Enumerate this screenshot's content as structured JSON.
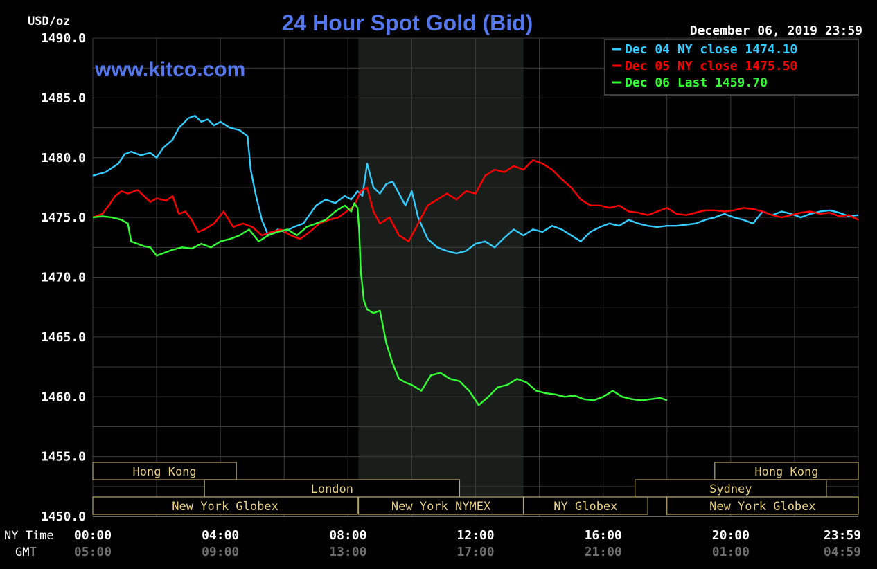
{
  "chart_data": {
    "type": "line",
    "title": "24 Hour Spot Gold (Bid)",
    "watermark": "www.kitco.com",
    "date_label": "December 06, 2019 23:59",
    "ylabel": "USD/oz",
    "ylim": [
      1450,
      1490
    ],
    "yticks": [
      {
        "value": 1450,
        "label": "1450.0"
      },
      {
        "value": 1455,
        "label": "1455.0"
      },
      {
        "value": 1460,
        "label": "1460.0"
      },
      {
        "value": 1465,
        "label": "1465.0"
      },
      {
        "value": 1470,
        "label": "1470.0"
      },
      {
        "value": 1475,
        "label": "1475.0"
      },
      {
        "value": 1480,
        "label": "1480.0"
      },
      {
        "value": 1485,
        "label": "1485.0"
      },
      {
        "value": 1490,
        "label": "1490.0"
      }
    ],
    "xlim": [
      0,
      24
    ],
    "x_row1_title": "NY Time",
    "x_row2_title": "GMT",
    "xticks": [
      {
        "hour": 0,
        "ny": "00:00",
        "gmt": "05:00"
      },
      {
        "hour": 4,
        "ny": "04:00",
        "gmt": "09:00"
      },
      {
        "hour": 8,
        "ny": "08:00",
        "gmt": "13:00"
      },
      {
        "hour": 12,
        "ny": "12:00",
        "gmt": "17:00"
      },
      {
        "hour": 16,
        "ny": "16:00",
        "gmt": "21:00"
      },
      {
        "hour": 20,
        "ny": "20:00",
        "gmt": "01:00"
      },
      {
        "hour": 23.98,
        "ny": "23:59",
        "gmt": "04:59"
      }
    ],
    "grid": true,
    "legend_position": "top-right",
    "shaded_range": [
      8.33,
      13.5
    ],
    "sessions": [
      {
        "label": "Hong Kong",
        "start": 0,
        "end": 4.5,
        "row": 0
      },
      {
        "label": "Hong Kong",
        "start": 19.5,
        "end": 24,
        "row": 0
      },
      {
        "label": "London",
        "start": 3.5,
        "end": 11.5,
        "row": 1
      },
      {
        "label": "Sydney",
        "start": 17,
        "end": 23,
        "row": 1
      },
      {
        "label": "New York Globex",
        "start": 0,
        "end": 8.3,
        "row": 2
      },
      {
        "label": "New York NYMEX",
        "start": 8.33,
        "end": 13.5,
        "row": 2
      },
      {
        "label": "NY Globex",
        "start": 13.5,
        "end": 17.4,
        "row": 2
      },
      {
        "label": "New York Globex",
        "start": 18,
        "end": 24,
        "row": 2
      }
    ],
    "series": [
      {
        "name": "Dec 04 NY close 1474.10",
        "color": "#33ccff",
        "x": [
          0,
          0.4,
          0.8,
          1.0,
          1.2,
          1.5,
          1.8,
          2.0,
          2.2,
          2.5,
          2.7,
          3.0,
          3.2,
          3.4,
          3.6,
          3.8,
          4.0,
          4.3,
          4.6,
          4.85,
          4.95,
          5.1,
          5.3,
          5.5,
          5.8,
          6.0,
          6.3,
          6.6,
          7.0,
          7.3,
          7.6,
          7.9,
          8.1,
          8.3,
          8.45,
          8.6,
          8.8,
          9.0,
          9.2,
          9.4,
          9.6,
          9.8,
          10.0,
          10.2,
          10.5,
          10.8,
          11.1,
          11.4,
          11.7,
          12.0,
          12.3,
          12.6,
          12.9,
          13.2,
          13.5,
          13.8,
          14.1,
          14.4,
          14.7,
          15.0,
          15.3,
          15.6,
          15.9,
          16.2,
          16.5,
          16.8,
          17.1,
          17.4,
          17.7,
          18.0,
          18.3,
          18.6,
          18.9,
          19.2,
          19.5,
          19.8,
          20.1,
          20.4,
          20.7,
          21.0,
          21.3,
          21.6,
          21.9,
          22.2,
          22.5,
          22.8,
          23.1,
          23.4,
          23.7,
          24.0
        ],
        "values": [
          1478.5,
          1478.8,
          1479.5,
          1480.3,
          1480.5,
          1480.2,
          1480.4,
          1480.0,
          1480.8,
          1481.5,
          1482.5,
          1483.3,
          1483.5,
          1483.0,
          1483.2,
          1482.7,
          1483.0,
          1482.5,
          1482.3,
          1481.8,
          1479.0,
          1477.0,
          1474.8,
          1473.5,
          1474.0,
          1473.8,
          1474.2,
          1474.5,
          1476.0,
          1476.5,
          1476.2,
          1476.8,
          1476.5,
          1477.2,
          1476.8,
          1479.5,
          1477.5,
          1477.0,
          1477.8,
          1478.0,
          1477.0,
          1476.0,
          1477.2,
          1475.0,
          1473.2,
          1472.5,
          1472.2,
          1472.0,
          1472.2,
          1472.8,
          1473.0,
          1472.5,
          1473.3,
          1474.0,
          1473.5,
          1474.0,
          1473.8,
          1474.3,
          1474.0,
          1473.5,
          1473.0,
          1473.8,
          1474.2,
          1474.5,
          1474.3,
          1474.8,
          1474.5,
          1474.3,
          1474.2,
          1474.3,
          1474.3,
          1474.4,
          1474.5,
          1474.8,
          1475.0,
          1475.3,
          1475.0,
          1474.8,
          1474.5,
          1475.5,
          1475.2,
          1475.5,
          1475.3,
          1475.0,
          1475.3,
          1475.5,
          1475.6,
          1475.4,
          1475.1,
          1475.2
        ]
      },
      {
        "name": "Dec 05 NY close 1475.50",
        "color": "#ff0000",
        "x": [
          0,
          0.3,
          0.5,
          0.7,
          0.9,
          1.1,
          1.4,
          1.6,
          1.8,
          2.0,
          2.3,
          2.5,
          2.7,
          2.9,
          3.1,
          3.3,
          3.5,
          3.8,
          4.1,
          4.4,
          4.7,
          5.0,
          5.3,
          5.6,
          5.9,
          6.2,
          6.5,
          6.8,
          7.1,
          7.4,
          7.7,
          8.0,
          8.2,
          8.4,
          8.6,
          8.8,
          9.0,
          9.3,
          9.6,
          9.9,
          10.2,
          10.5,
          10.8,
          11.1,
          11.4,
          11.7,
          12.0,
          12.3,
          12.6,
          12.9,
          13.2,
          13.5,
          13.8,
          14.1,
          14.4,
          14.7,
          15.0,
          15.3,
          15.6,
          15.9,
          16.2,
          16.5,
          16.8,
          17.1,
          17.4,
          17.7,
          18.0,
          18.3,
          18.6,
          18.9,
          19.2,
          19.5,
          19.8,
          20.1,
          20.4,
          20.7,
          21.0,
          21.3,
          21.6,
          21.9,
          22.2,
          22.5,
          22.8,
          23.1,
          23.4,
          23.7,
          24.0
        ],
        "values": [
          1475.0,
          1475.3,
          1476.0,
          1476.8,
          1477.2,
          1477.0,
          1477.3,
          1476.8,
          1476.3,
          1476.6,
          1476.4,
          1476.8,
          1475.3,
          1475.5,
          1474.8,
          1473.8,
          1474.0,
          1474.5,
          1475.5,
          1474.2,
          1474.5,
          1474.2,
          1473.5,
          1473.8,
          1474.0,
          1473.5,
          1473.2,
          1473.8,
          1474.5,
          1474.8,
          1475.0,
          1475.6,
          1476.0,
          1477.2,
          1477.5,
          1475.5,
          1474.5,
          1475.0,
          1473.5,
          1473.0,
          1474.5,
          1476.0,
          1476.5,
          1477.0,
          1476.5,
          1477.2,
          1477.0,
          1478.5,
          1479.0,
          1478.8,
          1479.3,
          1479.0,
          1479.8,
          1479.5,
          1479.0,
          1478.2,
          1477.5,
          1476.5,
          1476.0,
          1476.0,
          1475.8,
          1476.0,
          1475.5,
          1475.4,
          1475.2,
          1475.5,
          1475.8,
          1475.3,
          1475.2,
          1475.4,
          1475.6,
          1475.6,
          1475.5,
          1475.6,
          1475.8,
          1475.7,
          1475.5,
          1475.2,
          1475.0,
          1475.2,
          1475.4,
          1475.5,
          1475.3,
          1475.4,
          1475.1,
          1475.2,
          1474.8
        ]
      },
      {
        "name": "Dec 06 Last 1459.70",
        "color": "#33ff33",
        "x": [
          0,
          0.3,
          0.6,
          0.9,
          1.1,
          1.2,
          1.4,
          1.6,
          1.8,
          2.0,
          2.2,
          2.5,
          2.8,
          3.1,
          3.4,
          3.7,
          4.0,
          4.3,
          4.6,
          4.9,
          5.2,
          5.5,
          5.8,
          6.1,
          6.4,
          6.7,
          7.0,
          7.3,
          7.6,
          7.9,
          8.1,
          8.2,
          8.3,
          8.35,
          8.4,
          8.5,
          8.6,
          8.8,
          9.0,
          9.2,
          9.4,
          9.6,
          9.8,
          10.0,
          10.3,
          10.6,
          10.9,
          11.2,
          11.5,
          11.8,
          12.1,
          12.4,
          12.7,
          13.0,
          13.3,
          13.6,
          13.9,
          14.2,
          14.5,
          14.8,
          15.1,
          15.4,
          15.7,
          16.0,
          16.3,
          16.6,
          16.9,
          17.2,
          17.5,
          17.8,
          18.0
        ],
        "values": [
          1475.0,
          1475.1,
          1475.0,
          1474.8,
          1474.5,
          1473.0,
          1472.8,
          1472.6,
          1472.5,
          1471.8,
          1472.0,
          1472.3,
          1472.5,
          1472.4,
          1472.8,
          1472.5,
          1473.0,
          1473.2,
          1473.5,
          1474.0,
          1473.0,
          1473.5,
          1473.8,
          1474.0,
          1473.5,
          1474.2,
          1474.5,
          1474.8,
          1475.5,
          1476.0,
          1475.5,
          1476.2,
          1475.8,
          1474.0,
          1470.5,
          1468.0,
          1467.3,
          1467.0,
          1467.2,
          1464.5,
          1462.8,
          1461.5,
          1461.2,
          1461.0,
          1460.5,
          1461.8,
          1462.0,
          1461.5,
          1461.3,
          1460.5,
          1459.3,
          1460.0,
          1460.8,
          1461.0,
          1461.5,
          1461.2,
          1460.5,
          1460.3,
          1460.2,
          1460.0,
          1460.1,
          1459.8,
          1459.7,
          1460.0,
          1460.5,
          1460.0,
          1459.8,
          1459.7,
          1459.8,
          1459.9,
          1459.7
        ]
      }
    ]
  }
}
